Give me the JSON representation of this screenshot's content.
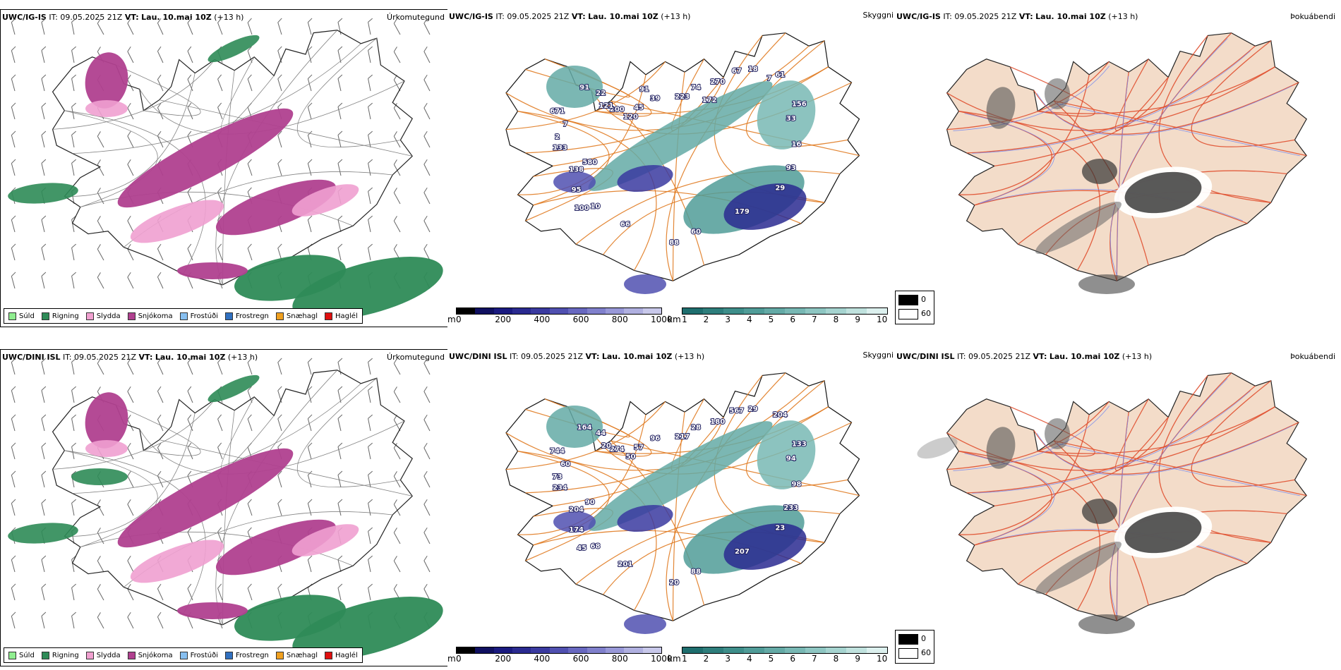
{
  "rows": [
    {
      "model": "UWC/IG-IS",
      "it_label": "IT:",
      "it_value": "09.05.2025 21Z",
      "vt_label": "VT:",
      "vt_value": "Lau. 10.mai 10Z",
      "lead": "(+13 h)"
    },
    {
      "model": "UWC/DINI ISL",
      "it_label": "IT:",
      "it_value": "09.05.2025 21Z",
      "vt_label": "VT:",
      "vt_value": "Lau. 10.mai 10Z",
      "lead": "(+13 h)"
    }
  ],
  "panel_names": {
    "precip_type": "Úrkomutegund",
    "clouds": "Skyggni",
    "fog": "Þokuábendi"
  },
  "precip_legend": [
    {
      "label": "Súld",
      "color": "#90ee90"
    },
    {
      "label": "Rigning",
      "color": "#2e8b57"
    },
    {
      "label": "Slydda",
      "color": "#f0a0d0"
    },
    {
      "label": "Snjókoma",
      "color": "#b0408f"
    },
    {
      "label": "Frostúði",
      "color": "#87bff0"
    },
    {
      "label": "Frostregn",
      "color": "#3070c0"
    },
    {
      "label": "Snæhagl",
      "color": "#f0a020"
    },
    {
      "label": "Haglél",
      "color": "#e01010"
    }
  ],
  "ceiling_scale": {
    "unit": "m",
    "ticks": [
      "0",
      "200",
      "400",
      "600",
      "800",
      "1000"
    ],
    "colors": [
      "#000000",
      "#101060",
      "#1a1a80",
      "#2a2a90",
      "#3a3aa0",
      "#5050b0",
      "#6868c0",
      "#8080cc",
      "#9898d8",
      "#b0b0e0",
      "#c8c8ea"
    ]
  },
  "visibility_scale": {
    "unit": "km",
    "ticks": [
      "1",
      "2",
      "3",
      "4",
      "5",
      "6",
      "7",
      "8",
      "9",
      "10"
    ],
    "colors": [
      "#1e6e6e",
      "#2e7e7c",
      "#3e8e8a",
      "#509c98",
      "#64aaa6",
      "#78b8b4",
      "#8ec6c2",
      "#a6d4d0",
      "#c0e2de",
      "#dcf0ee"
    ]
  },
  "fog_scale": {
    "low": "0",
    "high": "60",
    "low_color": "#000000",
    "high_color": "#ffffff"
  },
  "map_labels": [
    [
      "2",
      "22",
      "45",
      "74",
      "18",
      "33",
      "29",
      "88",
      "100",
      "580",
      "671",
      "200",
      "39",
      "270",
      "61",
      "16",
      "179",
      "66",
      "95",
      "133",
      "91",
      "120",
      "223",
      "67",
      "156",
      "93",
      "60",
      "10",
      "138",
      "7",
      "121",
      "91",
      "172",
      "7"
    ],
    [
      "73",
      "44",
      "57",
      "28",
      "29",
      "94",
      "23",
      "20",
      "45",
      "90",
      "744",
      "274",
      "96",
      "180",
      "204",
      "98",
      "207",
      "201",
      "174",
      "234",
      "164",
      "50",
      "217",
      "567",
      "133",
      "233",
      "88",
      "68",
      "204",
      "60",
      "20"
    ]
  ]
}
